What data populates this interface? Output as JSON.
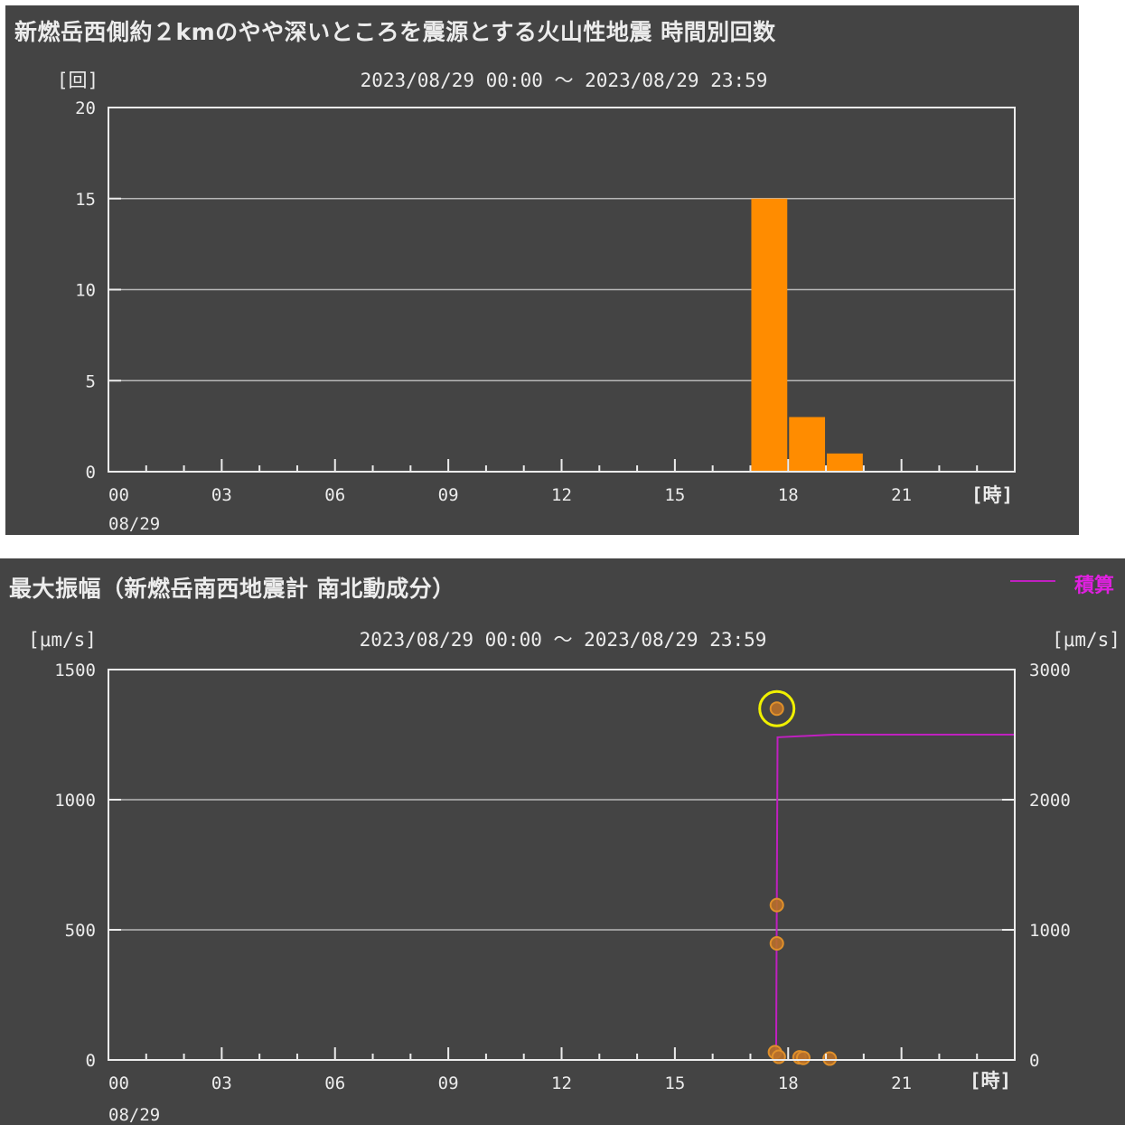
{
  "colors": {
    "panel_bg": "#444444",
    "grid": "#b8b8b8",
    "text": "#ececec",
    "bar": "#ff8c00",
    "dot_fill": "#b8702a",
    "dot_stroke": "#e0902a",
    "cumulative_line": "#c020c0",
    "legend": "#e020e0",
    "highlight_ring": "#f0f000"
  },
  "chart_data": [
    {
      "type": "bar",
      "title": "新燃岳西側約２kmのやや深いところを震源とする火山性地震 時間別回数",
      "subtitle": "2023/08/29 00:00 〜 2023/08/29 23:59",
      "ylabel": "[回]",
      "xlabel": "[時]",
      "date_label": "08/29",
      "ylim": [
        0,
        20
      ],
      "yticks": [
        "0",
        "5",
        "10",
        "15",
        "20"
      ],
      "xlim": [
        0,
        24
      ],
      "xticks": [
        "00",
        "03",
        "06",
        "09",
        "12",
        "15",
        "18",
        "21"
      ],
      "grid": true,
      "bars": [
        {
          "hour": 17,
          "value": 15
        },
        {
          "hour": 18,
          "value": 3
        },
        {
          "hour": 19,
          "value": 1
        }
      ]
    },
    {
      "type": "scatter",
      "title": "最大振幅（新燃岳南西地震計 南北動成分）",
      "subtitle": "2023/08/29 00:00 〜 2023/08/29 23:59",
      "ylabel": "[μm/s]",
      "y2label": "[μm/s]",
      "xlabel": "[時]",
      "date_label": "08/29",
      "ylim": [
        0,
        1500
      ],
      "yticks": [
        "0",
        "500",
        "1000",
        "1500"
      ],
      "y2lim": [
        0,
        3000
      ],
      "y2ticks": [
        "0",
        "1000",
        "2000",
        "3000"
      ],
      "xlim": [
        0,
        24
      ],
      "xticks": [
        "00",
        "03",
        "06",
        "09",
        "12",
        "15",
        "18",
        "21"
      ],
      "grid": true,
      "legend": {
        "label": "積算",
        "placement": "top-right"
      },
      "points": [
        {
          "hour": 17.7,
          "amp": 1350,
          "highlight": true
        },
        {
          "hour": 17.7,
          "amp": 595
        },
        {
          "hour": 17.7,
          "amp": 448
        },
        {
          "hour": 17.65,
          "amp": 30
        },
        {
          "hour": 17.75,
          "amp": 12
        },
        {
          "hour": 18.3,
          "amp": 10
        },
        {
          "hour": 18.4,
          "amp": 8
        },
        {
          "hour": 19.1,
          "amp": 5
        }
      ],
      "cumulative": [
        {
          "hour": 0,
          "value": 0
        },
        {
          "hour": 17.68,
          "value": 0
        },
        {
          "hour": 17.72,
          "value": 2480
        },
        {
          "hour": 18.5,
          "value": 2490
        },
        {
          "hour": 19.2,
          "value": 2500
        },
        {
          "hour": 24,
          "value": 2500
        }
      ]
    }
  ]
}
